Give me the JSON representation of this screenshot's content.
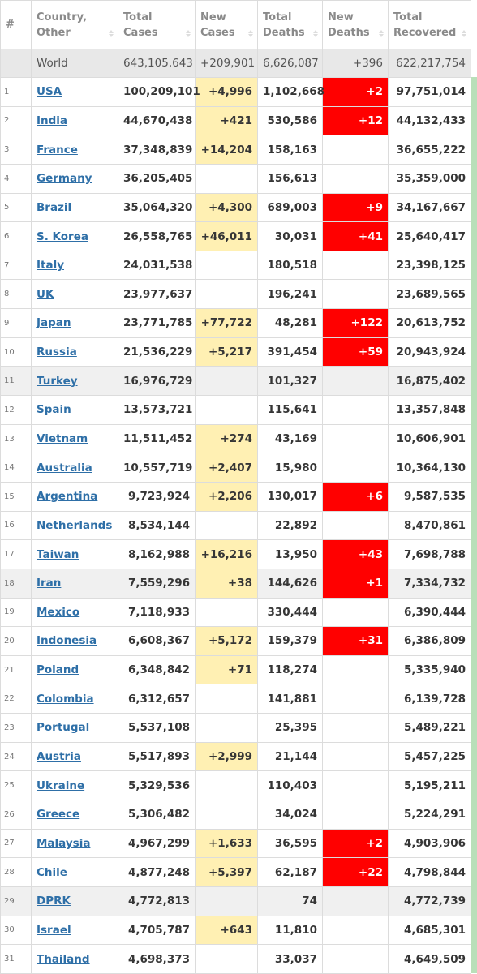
{
  "table": {
    "header": [
      [
        "#"
      ],
      [
        "Country,",
        "Other"
      ],
      [
        "Total",
        "Cases"
      ],
      [
        "New",
        "Cases"
      ],
      [
        "Total",
        "Deaths"
      ],
      [
        "New",
        "Deaths"
      ],
      [
        "Total",
        "Recovered"
      ]
    ],
    "world": [
      "World",
      "643,105,643",
      "+209,901",
      "6,626,087",
      "+396",
      "622,217,754"
    ],
    "rows": [
      {
        "cells": [
          "1",
          "USA",
          "100,209,101",
          "+4,996",
          "1,102,668",
          "+2",
          "97,751,014"
        ]
      },
      {
        "cells": [
          "2",
          "India",
          "44,670,438",
          "+421",
          "530,586",
          "+12",
          "44,132,433"
        ]
      },
      {
        "cells": [
          "3",
          "France",
          "37,348,839",
          "+14,204",
          "158,163",
          null,
          "36,655,222"
        ]
      },
      {
        "cells": [
          "4",
          "Germany",
          "36,205,405",
          null,
          "156,613",
          null,
          "35,359,000"
        ]
      },
      {
        "cells": [
          "5",
          "Brazil",
          "35,064,320",
          "+4,300",
          "689,003",
          "+9",
          "34,167,667"
        ]
      },
      {
        "cells": [
          "6",
          "S. Korea",
          "26,558,765",
          "+46,011",
          "30,031",
          "+41",
          "25,640,417"
        ]
      },
      {
        "cells": [
          "7",
          "Italy",
          "24,031,538",
          null,
          "180,518",
          null,
          "23,398,125"
        ]
      },
      {
        "cells": [
          "8",
          "UK",
          "23,977,637",
          null,
          "196,241",
          null,
          "23,689,565"
        ]
      },
      {
        "cells": [
          "9",
          "Japan",
          "23,771,785",
          "+77,722",
          "48,281",
          "+122",
          "20,613,752"
        ]
      },
      {
        "cells": [
          "10",
          "Russia",
          "21,536,229",
          "+5,217",
          "391,454",
          "+59",
          "20,943,924"
        ]
      },
      {
        "cells": [
          "11",
          "Turkey",
          "16,976,729",
          null,
          "101,327",
          null,
          "16,875,402"
        ],
        "shaded": true
      },
      {
        "cells": [
          "12",
          "Spain",
          "13,573,721",
          null,
          "115,641",
          null,
          "13,357,848"
        ]
      },
      {
        "cells": [
          "13",
          "Vietnam",
          "11,511,452",
          "+274",
          "43,169",
          null,
          "10,606,901"
        ]
      },
      {
        "cells": [
          "14",
          "Australia",
          "10,557,719",
          "+2,407",
          "15,980",
          null,
          "10,364,130"
        ]
      },
      {
        "cells": [
          "15",
          "Argentina",
          "9,723,924",
          "+2,206",
          "130,017",
          "+6",
          "9,587,535"
        ]
      },
      {
        "cells": [
          "16",
          "Netherlands",
          "8,534,144",
          null,
          "22,892",
          null,
          "8,470,861"
        ]
      },
      {
        "cells": [
          "17",
          "Taiwan",
          "8,162,988",
          "+16,216",
          "13,950",
          "+43",
          "7,698,788"
        ]
      },
      {
        "cells": [
          "18",
          "Iran",
          "7,559,296",
          "+38",
          "144,626",
          "+1",
          "7,334,732"
        ],
        "shaded": true
      },
      {
        "cells": [
          "19",
          "Mexico",
          "7,118,933",
          null,
          "330,444",
          null,
          "6,390,444"
        ]
      },
      {
        "cells": [
          "20",
          "Indonesia",
          "6,608,367",
          "+5,172",
          "159,379",
          "+31",
          "6,386,809"
        ]
      },
      {
        "cells": [
          "21",
          "Poland",
          "6,348,842",
          "+71",
          "118,274",
          null,
          "5,335,940"
        ]
      },
      {
        "cells": [
          "22",
          "Colombia",
          "6,312,657",
          null,
          "141,881",
          null,
          "6,139,728"
        ]
      },
      {
        "cells": [
          "23",
          "Portugal",
          "5,537,108",
          null,
          "25,395",
          null,
          "5,489,221"
        ]
      },
      {
        "cells": [
          "24",
          "Austria",
          "5,517,893",
          "+2,999",
          "21,144",
          null,
          "5,457,225"
        ]
      },
      {
        "cells": [
          "25",
          "Ukraine",
          "5,329,536",
          null,
          "110,403",
          null,
          "5,195,211"
        ]
      },
      {
        "cells": [
          "26",
          "Greece",
          "5,306,482",
          null,
          "34,024",
          null,
          "5,224,291"
        ]
      },
      {
        "cells": [
          "27",
          "Malaysia",
          "4,967,299",
          "+1,633",
          "36,595",
          "+2",
          "4,903,906"
        ]
      },
      {
        "cells": [
          "28",
          "Chile",
          "4,877,248",
          "+5,397",
          "62,187",
          "+22",
          "4,798,844"
        ]
      },
      {
        "cells": [
          "29",
          "DPRK",
          "4,772,813",
          null,
          "74",
          null,
          "4,772,739"
        ],
        "shaded": true
      },
      {
        "cells": [
          "30",
          "Israel",
          "4,705,787",
          "+643",
          "11,810",
          null,
          "4,685,301"
        ]
      },
      {
        "cells": [
          "31",
          "Thailand",
          "4,698,373",
          null,
          "33,037",
          null,
          "4,649,509"
        ]
      }
    ]
  }
}
